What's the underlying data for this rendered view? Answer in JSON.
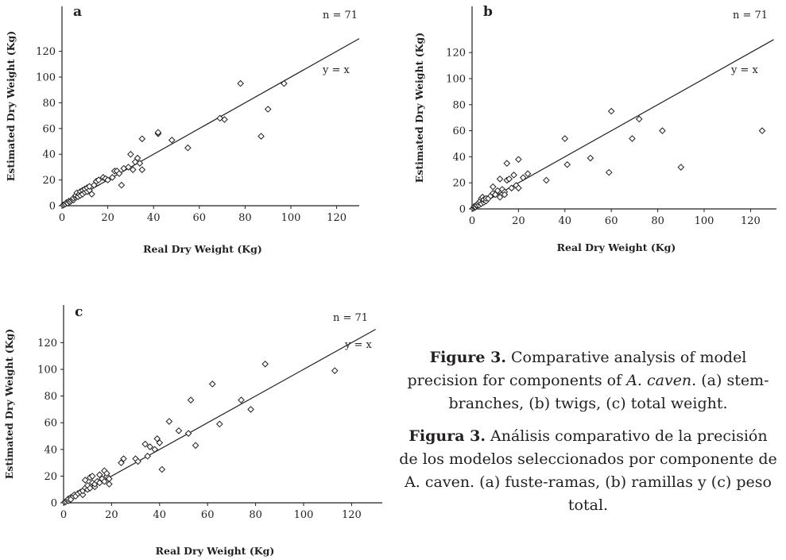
{
  "chart_data": [
    {
      "type": "scatter",
      "panel_label": "a",
      "xlabel": "Real Dry Weight (Kg)",
      "ylabel": "Estimated Dry Weight (Kg)",
      "xlim": [
        0,
        130
      ],
      "ylim": [
        0,
        130
      ],
      "xticks": [
        0,
        20,
        40,
        60,
        80,
        100,
        120
      ],
      "yticks": [
        0,
        20,
        40,
        60,
        80,
        100,
        120
      ],
      "n_label": "n = 71",
      "line_label": "y = x",
      "reference_line": {
        "slope": 1,
        "intercept": 0
      },
      "marker": "open-diamond",
      "points": [
        [
          0.5,
          0.5
        ],
        [
          1,
          1
        ],
        [
          1.5,
          1.5
        ],
        [
          2,
          2.5
        ],
        [
          2.5,
          2
        ],
        [
          3,
          3.5
        ],
        [
          3.5,
          3
        ],
        [
          4,
          4
        ],
        [
          4.5,
          5
        ],
        [
          5,
          4.5
        ],
        [
          5,
          6
        ],
        [
          6,
          6.5
        ],
        [
          6,
          8
        ],
        [
          6.5,
          10
        ],
        [
          7,
          7
        ],
        [
          7.5,
          9
        ],
        [
          8,
          11
        ],
        [
          8,
          8
        ],
        [
          9,
          12
        ],
        [
          9,
          9
        ],
        [
          10,
          10.5
        ],
        [
          10,
          13
        ],
        [
          11,
          11
        ],
        [
          11,
          14
        ],
        [
          12,
          12
        ],
        [
          12,
          15
        ],
        [
          13,
          9
        ],
        [
          14,
          16
        ],
        [
          15,
          19
        ],
        [
          16,
          20
        ],
        [
          18,
          22
        ],
        [
          19,
          21
        ],
        [
          20,
          20
        ],
        [
          22,
          22
        ],
        [
          23,
          27
        ],
        [
          24,
          27
        ],
        [
          25,
          25
        ],
        [
          26,
          16
        ],
        [
          27,
          29
        ],
        [
          29,
          30
        ],
        [
          30,
          40
        ],
        [
          31,
          28
        ],
        [
          32,
          34
        ],
        [
          33,
          37
        ],
        [
          34,
          33
        ],
        [
          35,
          28
        ],
        [
          35,
          52
        ],
        [
          42,
          56
        ],
        [
          42,
          57
        ],
        [
          48,
          51
        ],
        [
          55,
          45
        ],
        [
          69,
          68
        ],
        [
          71,
          67
        ],
        [
          78,
          95
        ],
        [
          87,
          54
        ],
        [
          90,
          75
        ],
        [
          97,
          95
        ]
      ]
    },
    {
      "type": "scatter",
      "panel_label": "b",
      "xlabel": "Real Dry Weight (Kg)",
      "ylabel": "Estimated Dry Weight (Kg)",
      "xlim": [
        0,
        130
      ],
      "ylim": [
        0,
        130
      ],
      "xticks": [
        0,
        20,
        40,
        60,
        80,
        100,
        120
      ],
      "yticks": [
        0,
        20,
        40,
        60,
        80,
        100,
        120
      ],
      "n_label": "n = 71",
      "line_label": "y = x",
      "reference_line": {
        "slope": 1,
        "intercept": 0
      },
      "marker": "open-diamond",
      "points": [
        [
          0.5,
          0.5
        ],
        [
          1,
          1
        ],
        [
          1,
          2
        ],
        [
          1.5,
          1.5
        ],
        [
          2,
          2.5
        ],
        [
          2,
          3
        ],
        [
          2.5,
          4
        ],
        [
          3,
          3
        ],
        [
          3,
          5
        ],
        [
          3.5,
          6
        ],
        [
          4,
          4
        ],
        [
          4,
          8
        ],
        [
          4.5,
          9
        ],
        [
          5,
          5
        ],
        [
          5,
          7
        ],
        [
          6,
          6
        ],
        [
          6,
          8
        ],
        [
          7,
          8
        ],
        [
          8,
          10
        ],
        [
          9,
          17
        ],
        [
          9,
          12
        ],
        [
          10,
          11
        ],
        [
          11,
          14
        ],
        [
          12,
          23
        ],
        [
          12,
          9
        ],
        [
          13,
          15
        ],
        [
          14,
          13
        ],
        [
          14,
          11
        ],
        [
          15,
          22
        ],
        [
          15,
          35
        ],
        [
          16,
          23
        ],
        [
          17,
          16
        ],
        [
          18,
          26
        ],
        [
          19,
          18
        ],
        [
          20,
          38
        ],
        [
          20,
          16
        ],
        [
          22,
          24
        ],
        [
          24,
          27
        ],
        [
          32,
          22
        ],
        [
          40,
          54
        ],
        [
          41,
          34
        ],
        [
          51,
          39
        ],
        [
          59,
          28
        ],
        [
          60,
          75
        ],
        [
          69,
          54
        ],
        [
          72,
          69
        ],
        [
          82,
          60
        ],
        [
          90,
          32
        ],
        [
          125,
          60
        ]
      ]
    },
    {
      "type": "scatter",
      "panel_label": "c",
      "xlabel": "Real Dry Weight (Kg)",
      "ylabel": "Estimated Dry Weight (Kg)",
      "xlim": [
        0,
        130
      ],
      "ylim": [
        0,
        130
      ],
      "xticks": [
        0,
        20,
        40,
        60,
        80,
        100,
        120
      ],
      "yticks": [
        0,
        20,
        40,
        60,
        80,
        100,
        120
      ],
      "n_label": "n = 71",
      "line_label": "y = x",
      "reference_line": {
        "slope": 1,
        "intercept": 0
      },
      "marker": "open-diamond",
      "points": [
        [
          0.5,
          0.5
        ],
        [
          1,
          1
        ],
        [
          1.5,
          2
        ],
        [
          2,
          1.5
        ],
        [
          2,
          3
        ],
        [
          3,
          4
        ],
        [
          3,
          2.5
        ],
        [
          4,
          5
        ],
        [
          4.5,
          6
        ],
        [
          5,
          5
        ],
        [
          6,
          7
        ],
        [
          7,
          8
        ],
        [
          8,
          6
        ],
        [
          8,
          9
        ],
        [
          9,
          11
        ],
        [
          9,
          17
        ],
        [
          10,
          10
        ],
        [
          10,
          13
        ],
        [
          11,
          19
        ],
        [
          11,
          11
        ],
        [
          12,
          15
        ],
        [
          12,
          20
        ],
        [
          13,
          12
        ],
        [
          13,
          14
        ],
        [
          14,
          16
        ],
        [
          15,
          15
        ],
        [
          15,
          21
        ],
        [
          16,
          18
        ],
        [
          17,
          24
        ],
        [
          17,
          16
        ],
        [
          18,
          20
        ],
        [
          18,
          22
        ],
        [
          19,
          14
        ],
        [
          19,
          18
        ],
        [
          24,
          30
        ],
        [
          25,
          33
        ],
        [
          30,
          33
        ],
        [
          31,
          31
        ],
        [
          34,
          44
        ],
        [
          35,
          35
        ],
        [
          36,
          42
        ],
        [
          38,
          40
        ],
        [
          39,
          48
        ],
        [
          40,
          45
        ],
        [
          41,
          25
        ],
        [
          44,
          61
        ],
        [
          48,
          54
        ],
        [
          52,
          52
        ],
        [
          53,
          77
        ],
        [
          55,
          43
        ],
        [
          62,
          89
        ],
        [
          65,
          59
        ],
        [
          74,
          77
        ],
        [
          78,
          70
        ],
        [
          84,
          104
        ],
        [
          113,
          99
        ]
      ]
    }
  ],
  "caption": {
    "en_figure_label": "Figure 3.",
    "en_text_before_species": " Comparative analysis of model precision for components of ",
    "en_species": "A. caven",
    "en_text_after_species": ". (a) stem-branches, (b) twigs, (c) total weight.",
    "es_figure_label": "Figura 3.",
    "es_text": " Análisis comparativo de la precisión de los modelos seleccionados por componente de A. caven. (a) fuste-ramas, (b) ramillas y (c) peso total."
  }
}
